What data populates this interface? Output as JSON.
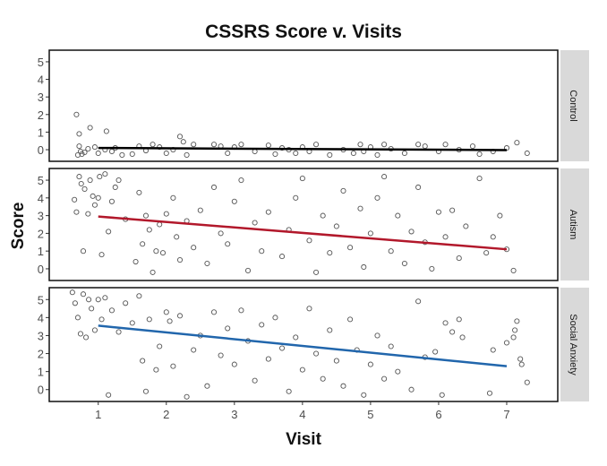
{
  "chart_data": {
    "type": "scatter",
    "title": "CSSRS Score v. Visits",
    "xlabel": "Visit",
    "ylabel": "Score",
    "xlim": [
      0.28,
      7.75
    ],
    "ylim": [
      -0.66,
      5.66
    ],
    "x_ticks": [
      "1",
      "2",
      "3",
      "4",
      "5",
      "6",
      "7"
    ],
    "y_ticks": [
      "0",
      "1",
      "2",
      "3",
      "4",
      "5"
    ],
    "facets": [
      {
        "name": "Control",
        "trend_color": "#000000",
        "trend": [
          [
            1,
            0.1
          ],
          [
            7,
            -0.02
          ]
        ],
        "points": [
          [
            0.68,
            2.0
          ],
          [
            0.72,
            0.9
          ],
          [
            0.88,
            1.25
          ],
          [
            1.12,
            1.05
          ],
          [
            0.7,
            -0.3
          ],
          [
            0.72,
            0.2
          ],
          [
            0.74,
            -0.1
          ],
          [
            0.76,
            -0.25
          ],
          [
            0.8,
            -0.15
          ],
          [
            0.85,
            0.05
          ],
          [
            0.95,
            0.15
          ],
          [
            1.0,
            -0.2
          ],
          [
            1.1,
            0.0
          ],
          [
            1.2,
            -0.1
          ],
          [
            1.25,
            0.1
          ],
          [
            1.35,
            -0.3
          ],
          [
            1.5,
            -0.25
          ],
          [
            1.6,
            0.2
          ],
          [
            1.7,
            -0.05
          ],
          [
            1.8,
            0.3
          ],
          [
            1.9,
            0.15
          ],
          [
            2.0,
            -0.2
          ],
          [
            2.1,
            0.0
          ],
          [
            2.2,
            0.75
          ],
          [
            2.25,
            0.45
          ],
          [
            2.3,
            -0.3
          ],
          [
            2.4,
            0.3
          ],
          [
            2.7,
            0.3
          ],
          [
            2.8,
            0.2
          ],
          [
            2.9,
            -0.2
          ],
          [
            3.0,
            0.15
          ],
          [
            3.1,
            0.3
          ],
          [
            3.3,
            -0.1
          ],
          [
            3.5,
            0.25
          ],
          [
            3.6,
            -0.25
          ],
          [
            3.7,
            0.1
          ],
          [
            3.8,
            0.0
          ],
          [
            3.9,
            -0.2
          ],
          [
            4.0,
            0.15
          ],
          [
            4.1,
            -0.1
          ],
          [
            4.2,
            0.3
          ],
          [
            4.4,
            -0.3
          ],
          [
            4.6,
            0.0
          ],
          [
            4.75,
            -0.2
          ],
          [
            4.85,
            0.3
          ],
          [
            4.9,
            -0.1
          ],
          [
            5.0,
            0.15
          ],
          [
            5.1,
            -0.3
          ],
          [
            5.2,
            0.3
          ],
          [
            5.3,
            0.05
          ],
          [
            5.5,
            -0.2
          ],
          [
            5.7,
            0.3
          ],
          [
            5.8,
            0.2
          ],
          [
            6.0,
            -0.1
          ],
          [
            6.1,
            0.3
          ],
          [
            6.3,
            0.0
          ],
          [
            6.5,
            0.2
          ],
          [
            6.6,
            -0.25
          ],
          [
            6.8,
            -0.1
          ],
          [
            7.0,
            0.1
          ],
          [
            7.15,
            0.4
          ],
          [
            7.3,
            -0.2
          ]
        ]
      },
      {
        "name": "Autism",
        "trend_color": "#b2182b",
        "trend": [
          [
            1,
            2.95
          ],
          [
            7,
            1.1
          ]
        ],
        "points": [
          [
            0.65,
            3.9
          ],
          [
            0.68,
            3.2
          ],
          [
            0.72,
            5.2
          ],
          [
            0.75,
            4.8
          ],
          [
            0.78,
            1.0
          ],
          [
            0.8,
            4.5
          ],
          [
            0.85,
            3.1
          ],
          [
            0.88,
            5.0
          ],
          [
            0.92,
            4.1
          ],
          [
            0.95,
            3.6
          ],
          [
            1.0,
            4.0
          ],
          [
            1.02,
            5.2
          ],
          [
            1.05,
            0.8
          ],
          [
            1.1,
            5.35
          ],
          [
            1.15,
            2.1
          ],
          [
            1.2,
            3.8
          ],
          [
            1.25,
            4.6
          ],
          [
            1.3,
            5.0
          ],
          [
            1.4,
            2.8
          ],
          [
            1.55,
            0.4
          ],
          [
            1.6,
            4.3
          ],
          [
            1.65,
            1.4
          ],
          [
            1.7,
            3.0
          ],
          [
            1.75,
            2.2
          ],
          [
            1.8,
            -0.2
          ],
          [
            1.85,
            1.0
          ],
          [
            1.9,
            2.5
          ],
          [
            1.95,
            0.9
          ],
          [
            2.0,
            3.1
          ],
          [
            2.1,
            4.0
          ],
          [
            2.15,
            1.8
          ],
          [
            2.2,
            0.5
          ],
          [
            2.3,
            2.7
          ],
          [
            2.4,
            1.2
          ],
          [
            2.5,
            3.3
          ],
          [
            2.6,
            0.3
          ],
          [
            2.7,
            4.6
          ],
          [
            2.8,
            2.0
          ],
          [
            2.9,
            1.4
          ],
          [
            3.0,
            3.8
          ],
          [
            3.1,
            5.0
          ],
          [
            3.2,
            -0.1
          ],
          [
            3.3,
            2.6
          ],
          [
            3.4,
            1.0
          ],
          [
            3.5,
            3.2
          ],
          [
            3.7,
            0.7
          ],
          [
            3.8,
            2.2
          ],
          [
            3.9,
            4.0
          ],
          [
            4.0,
            5.1
          ],
          [
            4.1,
            1.6
          ],
          [
            4.2,
            -0.2
          ],
          [
            4.3,
            3.0
          ],
          [
            4.4,
            0.9
          ],
          [
            4.5,
            2.4
          ],
          [
            4.6,
            4.4
          ],
          [
            4.7,
            1.2
          ],
          [
            4.85,
            3.4
          ],
          [
            4.9,
            0.1
          ],
          [
            5.0,
            2.0
          ],
          [
            5.1,
            4.0
          ],
          [
            5.2,
            5.2
          ],
          [
            5.3,
            1.0
          ],
          [
            5.4,
            3.0
          ],
          [
            5.5,
            0.3
          ],
          [
            5.6,
            2.1
          ],
          [
            5.7,
            4.6
          ],
          [
            5.8,
            1.5
          ],
          [
            5.9,
            0.0
          ],
          [
            6.0,
            3.2
          ],
          [
            6.1,
            1.8
          ],
          [
            6.2,
            3.3
          ],
          [
            6.3,
            0.6
          ],
          [
            6.4,
            2.4
          ],
          [
            6.6,
            5.1
          ],
          [
            6.7,
            0.9
          ],
          [
            6.8,
            1.8
          ],
          [
            6.9,
            3.0
          ],
          [
            7.0,
            1.1
          ],
          [
            7.1,
            -0.1
          ]
        ]
      },
      {
        "name": "Social Anxiety",
        "trend_color": "#2166ac",
        "trend": [
          [
            1,
            3.55
          ],
          [
            7,
            1.3
          ]
        ],
        "points": [
          [
            0.62,
            5.4
          ],
          [
            0.66,
            4.8
          ],
          [
            0.7,
            4.0
          ],
          [
            0.74,
            3.1
          ],
          [
            0.78,
            5.3
          ],
          [
            0.82,
            2.9
          ],
          [
            0.86,
            5.0
          ],
          [
            0.9,
            4.5
          ],
          [
            0.95,
            3.3
          ],
          [
            1.0,
            5.0
          ],
          [
            1.05,
            3.9
          ],
          [
            1.1,
            5.1
          ],
          [
            1.15,
            -0.3
          ],
          [
            1.2,
            4.4
          ],
          [
            1.3,
            3.2
          ],
          [
            1.4,
            4.8
          ],
          [
            1.5,
            3.7
          ],
          [
            1.6,
            5.2
          ],
          [
            1.65,
            1.6
          ],
          [
            1.7,
            -0.1
          ],
          [
            1.75,
            3.9
          ],
          [
            1.85,
            1.1
          ],
          [
            1.9,
            2.4
          ],
          [
            2.0,
            4.3
          ],
          [
            2.05,
            3.8
          ],
          [
            2.1,
            1.3
          ],
          [
            2.2,
            4.1
          ],
          [
            2.3,
            -0.4
          ],
          [
            2.4,
            2.2
          ],
          [
            2.5,
            3.0
          ],
          [
            2.6,
            0.2
          ],
          [
            2.7,
            4.3
          ],
          [
            2.8,
            1.9
          ],
          [
            2.9,
            3.4
          ],
          [
            3.0,
            1.4
          ],
          [
            3.1,
            4.4
          ],
          [
            3.2,
            2.7
          ],
          [
            3.3,
            0.5
          ],
          [
            3.4,
            3.6
          ],
          [
            3.5,
            1.7
          ],
          [
            3.6,
            4.0
          ],
          [
            3.7,
            2.3
          ],
          [
            3.8,
            -0.1
          ],
          [
            3.9,
            2.9
          ],
          [
            4.0,
            1.1
          ],
          [
            4.1,
            4.5
          ],
          [
            4.2,
            2.0
          ],
          [
            4.3,
            0.6
          ],
          [
            4.4,
            3.3
          ],
          [
            4.5,
            1.6
          ],
          [
            4.6,
            0.2
          ],
          [
            4.7,
            3.9
          ],
          [
            4.8,
            2.2
          ],
          [
            4.9,
            -0.3
          ],
          [
            5.0,
            1.4
          ],
          [
            5.1,
            3.0
          ],
          [
            5.2,
            0.6
          ],
          [
            5.3,
            2.4
          ],
          [
            5.4,
            1.0
          ],
          [
            5.6,
            0.0
          ],
          [
            5.7,
            4.9
          ],
          [
            5.8,
            1.8
          ],
          [
            5.95,
            2.1
          ],
          [
            6.05,
            -0.3
          ],
          [
            6.1,
            3.7
          ],
          [
            6.2,
            3.2
          ],
          [
            6.3,
            3.9
          ],
          [
            6.35,
            2.9
          ],
          [
            6.75,
            -0.2
          ],
          [
            6.8,
            2.2
          ],
          [
            7.0,
            2.6
          ],
          [
            7.1,
            2.9
          ],
          [
            7.12,
            3.3
          ],
          [
            7.15,
            3.8
          ],
          [
            7.2,
            1.7
          ],
          [
            7.22,
            1.4
          ],
          [
            7.3,
            0.4
          ]
        ]
      }
    ]
  }
}
